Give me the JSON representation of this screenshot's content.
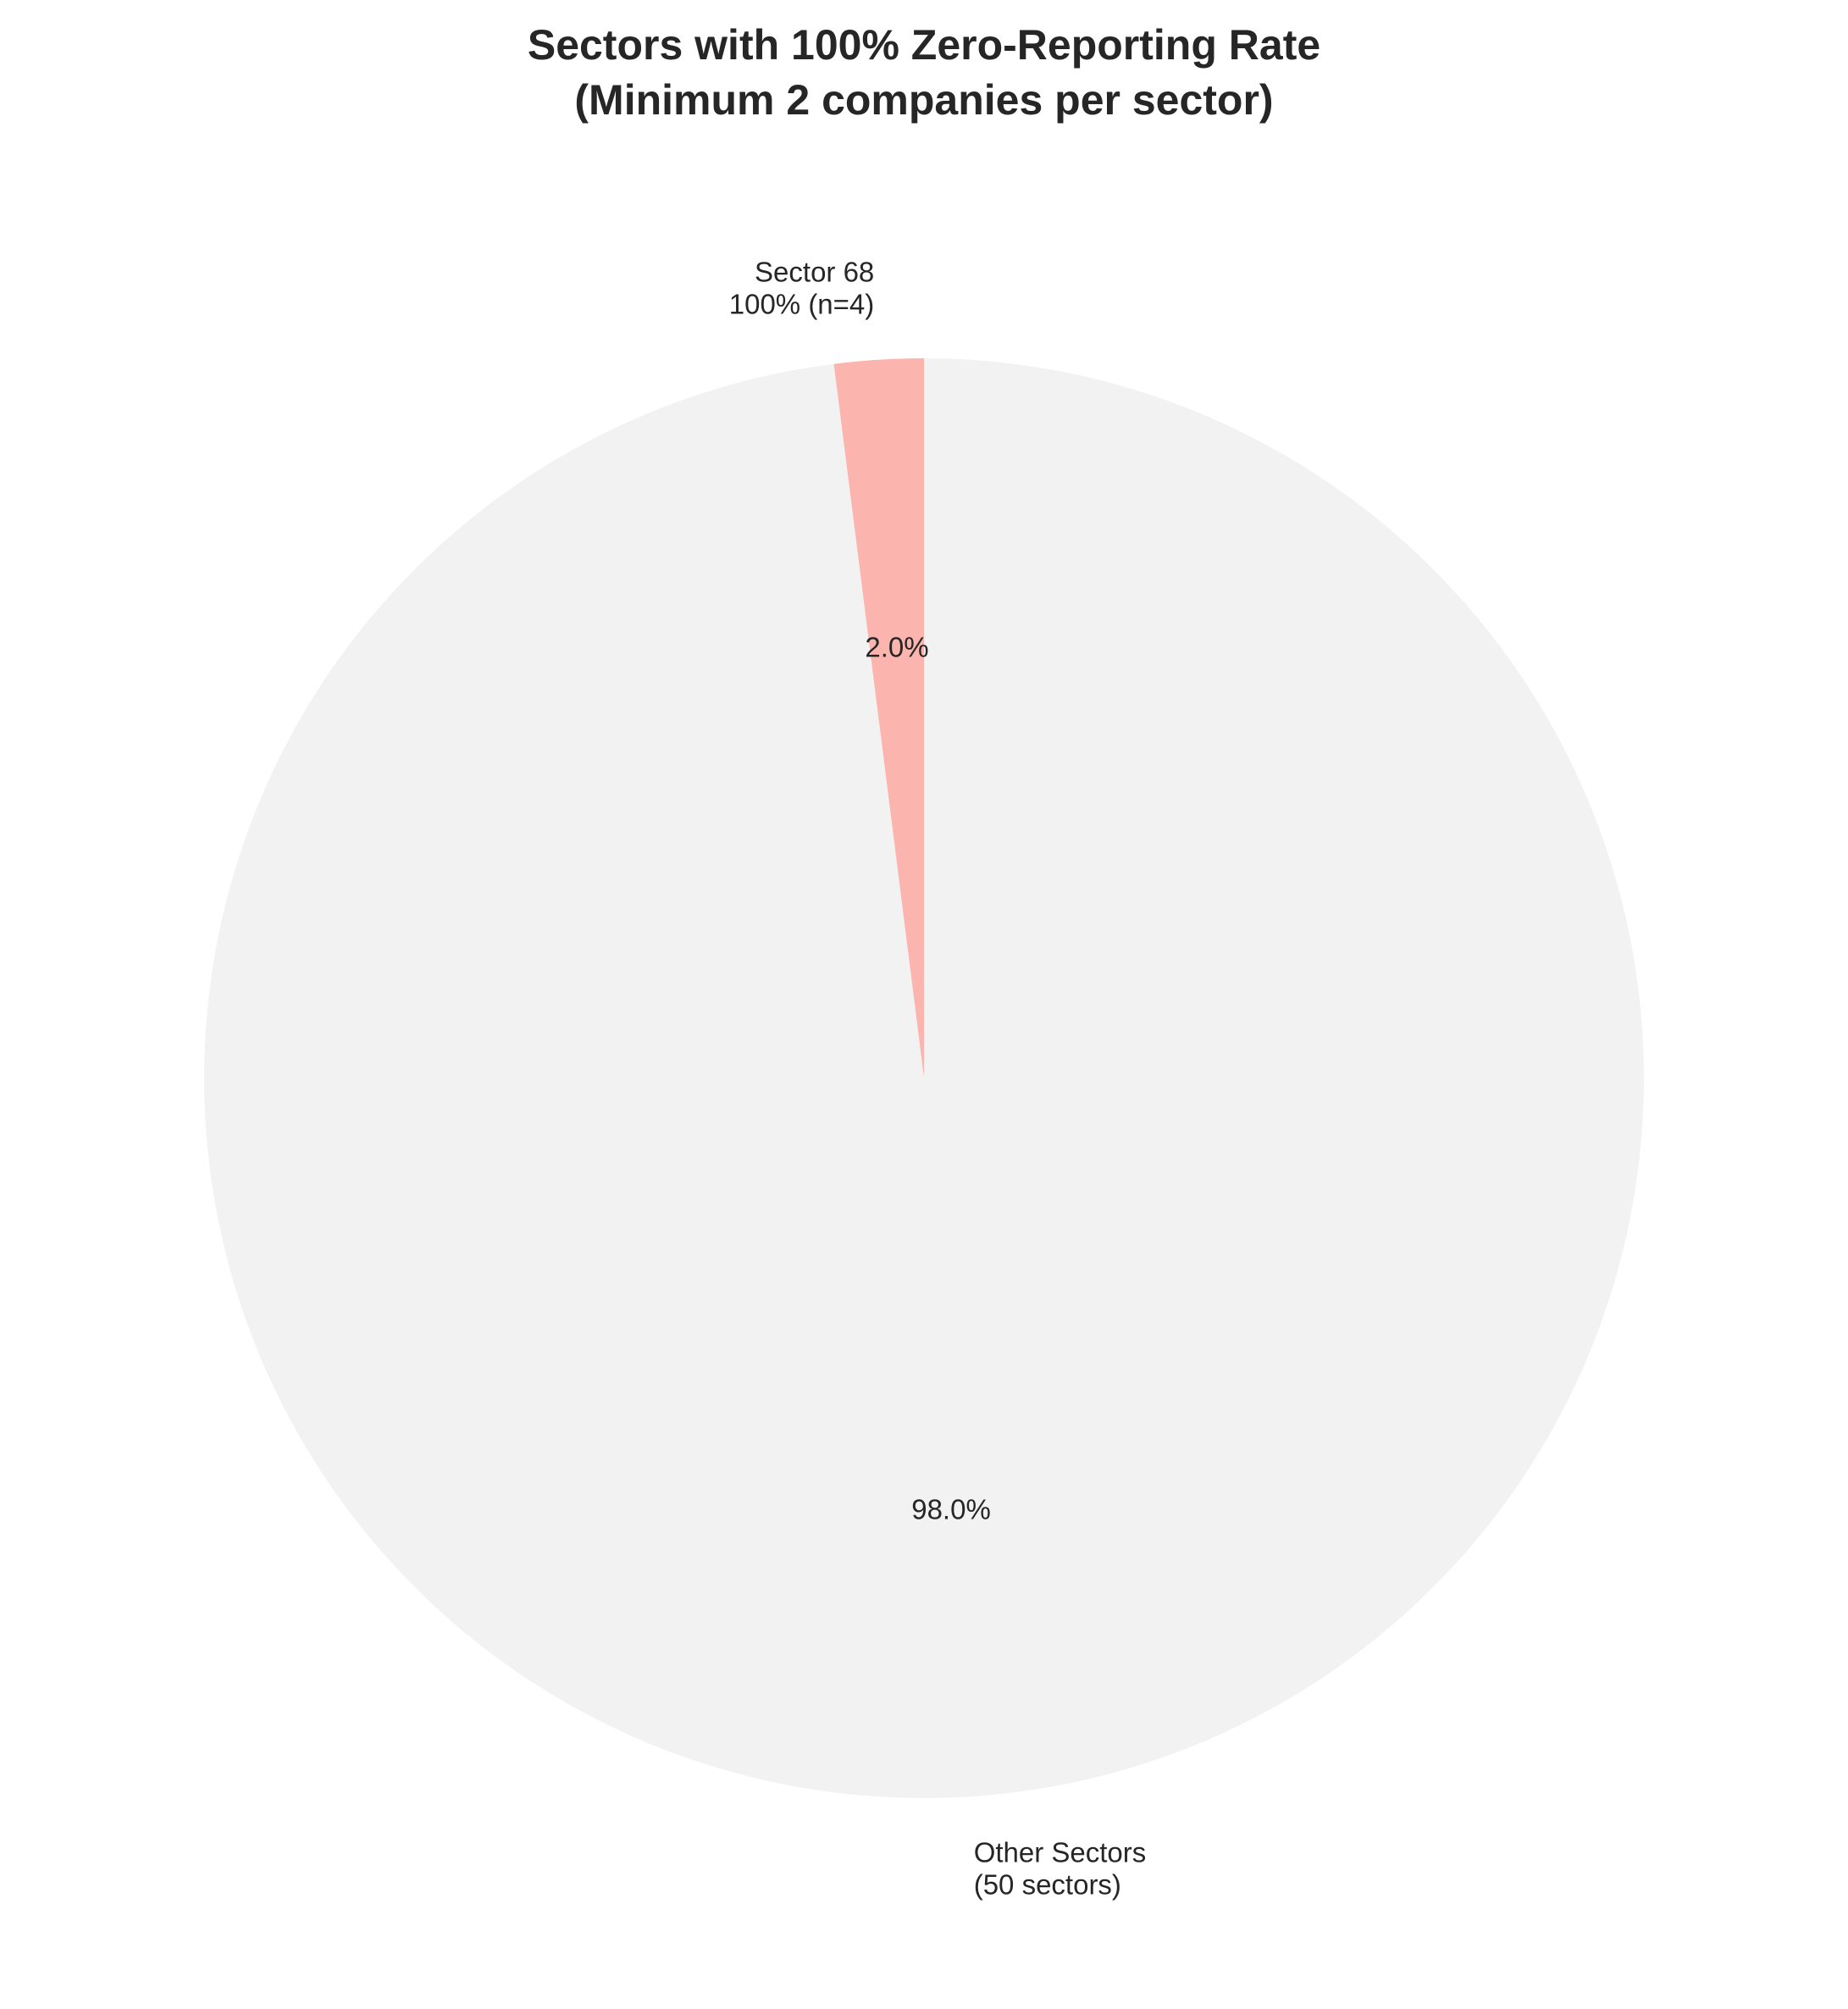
{
  "chart_data": {
    "type": "pie",
    "title": [
      "Sectors with 100% Zero-Reporting Rate",
      "(Minimum 2 companies per sector)"
    ],
    "start_angle": 90,
    "direction": "counterclockwise",
    "slices": [
      {
        "name": "Sector 68",
        "label_lines": [
          "Sector 68",
          "100% (n=4)"
        ],
        "value": 2.0,
        "pct_label": "2.0%",
        "color": "#fbb4ae"
      },
      {
        "name": "Other Sectors",
        "label_lines": [
          "Other Sectors",
          "(50 sectors)"
        ],
        "value": 98.0,
        "pct_label": "98.0%",
        "color": "#f2f2f2"
      }
    ]
  }
}
